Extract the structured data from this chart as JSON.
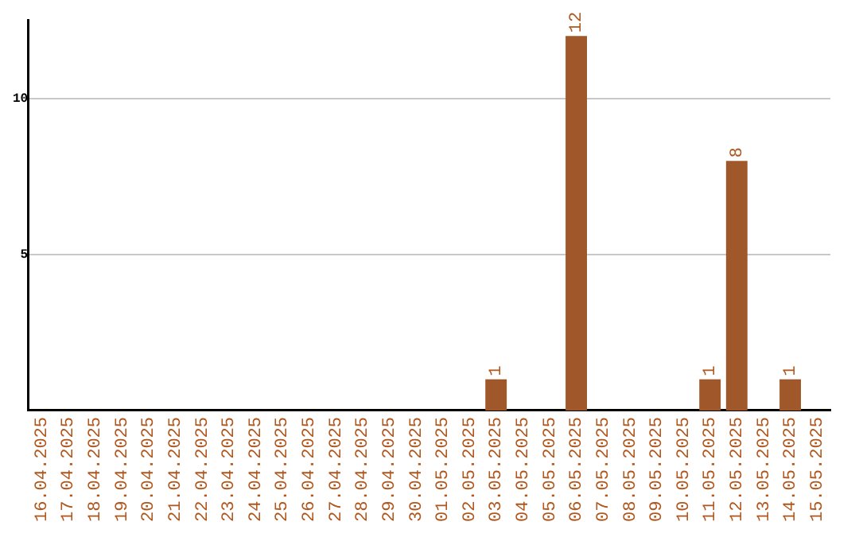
{
  "chart_data": {
    "type": "bar",
    "categories": [
      "16.04.2025",
      "17.04.2025",
      "18.04.2025",
      "19.04.2025",
      "20.04.2025",
      "21.04.2025",
      "22.04.2025",
      "23.04.2025",
      "24.04.2025",
      "25.04.2025",
      "26.04.2025",
      "27.04.2025",
      "28.04.2025",
      "29.04.2025",
      "30.04.2025",
      "01.05.2025",
      "02.05.2025",
      "03.05.2025",
      "04.05.2025",
      "05.05.2025",
      "06.05.2025",
      "07.05.2025",
      "08.05.2025",
      "09.05.2025",
      "10.05.2025",
      "11.05.2025",
      "12.05.2025",
      "13.05.2025",
      "14.05.2025",
      "15.05.2025"
    ],
    "values": [
      0,
      0,
      0,
      0,
      0,
      0,
      0,
      0,
      0,
      0,
      0,
      0,
      0,
      0,
      0,
      0,
      0,
      1,
      0,
      0,
      12,
      0,
      0,
      0,
      0,
      1,
      8,
      0,
      1,
      0
    ],
    "value_labels": [
      null,
      null,
      null,
      null,
      null,
      null,
      null,
      null,
      null,
      null,
      null,
      null,
      null,
      null,
      null,
      null,
      null,
      "1",
      null,
      null,
      "12",
      null,
      null,
      null,
      null,
      "1",
      "8",
      null,
      "1",
      null
    ],
    "color": "#a0582a",
    "ylim": [
      0,
      12.5
    ],
    "yticks": [
      5,
      10
    ],
    "grid": "y",
    "legend": false
  }
}
